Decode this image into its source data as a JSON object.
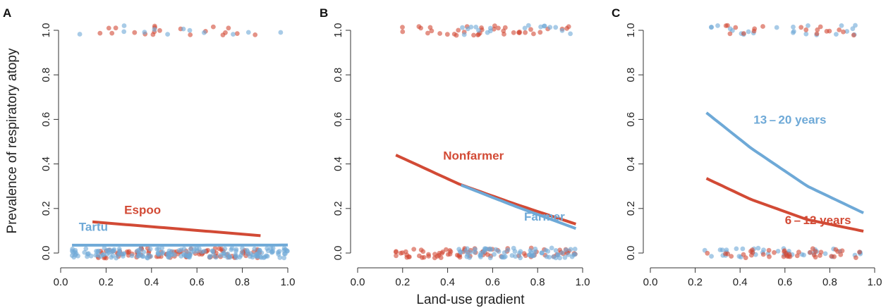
{
  "figure": {
    "ylabel": "Prevalence of respiratory atopy",
    "xlabel": "Land-use gradient"
  },
  "chart_data": [
    {
      "type": "scatter",
      "panel": "A",
      "xlim": [
        0.0,
        1.0
      ],
      "ylim": [
        0.0,
        1.0
      ],
      "xticks": [
        "0.0",
        "0.2",
        "0.4",
        "0.6",
        "0.8",
        "1.0"
      ],
      "yticks": [
        "0.0",
        "0.2",
        "0.4",
        "0.6",
        "0.8",
        "1.0"
      ],
      "grid": false,
      "series": [
        {
          "name": "Espoo",
          "color": "#d24a35",
          "label_pos": [
            0.28,
            0.175
          ],
          "curve": {
            "x": [
              0.14,
              0.5,
              0.88
            ],
            "y": [
              0.14,
              0.11,
              0.078
            ]
          },
          "points": {
            "xrange": [
              0.15,
              0.88
            ],
            "n_top": 20,
            "n_bottom": 90,
            "seed": 11
          }
        },
        {
          "name": "Tartu",
          "color": "#6ea9d7",
          "label_pos": [
            0.08,
            0.1
          ],
          "curve": {
            "x": [
              0.05,
              0.5,
              1.0
            ],
            "y": [
              0.035,
              0.035,
              0.036
            ]
          },
          "points": {
            "xrange": [
              0.05,
              1.0
            ],
            "n_top": 12,
            "n_bottom": 170,
            "seed": 12
          }
        }
      ]
    },
    {
      "type": "scatter",
      "panel": "B",
      "xlim": [
        0.0,
        1.0
      ],
      "ylim": [
        0.0,
        1.0
      ],
      "xticks": [
        "0.0",
        "0.2",
        "0.4",
        "0.6",
        "0.8",
        "1.0"
      ],
      "yticks": [
        "0.0",
        "0.2",
        "0.4",
        "0.6",
        "0.8",
        "1.0"
      ],
      "grid": false,
      "series": [
        {
          "name": "Nonfarmer",
          "color": "#d24a35",
          "label_pos": [
            0.38,
            0.42
          ],
          "curve": {
            "x": [
              0.17,
              0.45,
              0.7,
              0.97
            ],
            "y": [
              0.44,
              0.31,
              0.22,
              0.13
            ]
          },
          "points": {
            "xrange": [
              0.17,
              0.97
            ],
            "n_top": 38,
            "n_bottom": 75,
            "seed": 21
          }
        },
        {
          "name": "Farmer",
          "color": "#6ea9d7",
          "label_pos": [
            0.74,
            0.145
          ],
          "curve": {
            "x": [
              0.46,
              0.7,
              0.97
            ],
            "y": [
              0.305,
              0.21,
              0.11
            ]
          },
          "points": {
            "xrange": [
              0.45,
              0.97
            ],
            "n_top": 18,
            "n_bottom": 70,
            "seed": 22
          }
        }
      ]
    },
    {
      "type": "scatter",
      "panel": "C",
      "xlim": [
        0.0,
        1.0
      ],
      "ylim": [
        0.0,
        1.0
      ],
      "xticks": [
        "0.0",
        "0.2",
        "0.4",
        "0.6",
        "0.8",
        "1.0"
      ],
      "yticks": [
        "0.0",
        "0.2",
        "0.4",
        "0.6",
        "0.8",
        "1.0"
      ],
      "grid": false,
      "series": [
        {
          "name": "13 – 20 years",
          "color": "#6ea9d7",
          "label_pos": [
            0.46,
            0.58
          ],
          "curve": {
            "x": [
              0.25,
              0.45,
              0.7,
              0.95
            ],
            "y": [
              0.63,
              0.47,
              0.3,
              0.18
            ]
          },
          "points": {
            "xrange": [
              0.24,
              0.95
            ],
            "n_top": 22,
            "n_bottom": 40,
            "seed": 31
          }
        },
        {
          "name": "6 – 12 years",
          "color": "#d24a35",
          "label_pos": [
            0.6,
            0.13
          ],
          "curve": {
            "x": [
              0.25,
              0.45,
              0.7,
              0.95
            ],
            "y": [
              0.335,
              0.24,
              0.15,
              0.098
            ]
          },
          "points": {
            "xrange": [
              0.24,
              0.95
            ],
            "n_top": 18,
            "n_bottom": 40,
            "seed": 32
          }
        }
      ]
    }
  ]
}
